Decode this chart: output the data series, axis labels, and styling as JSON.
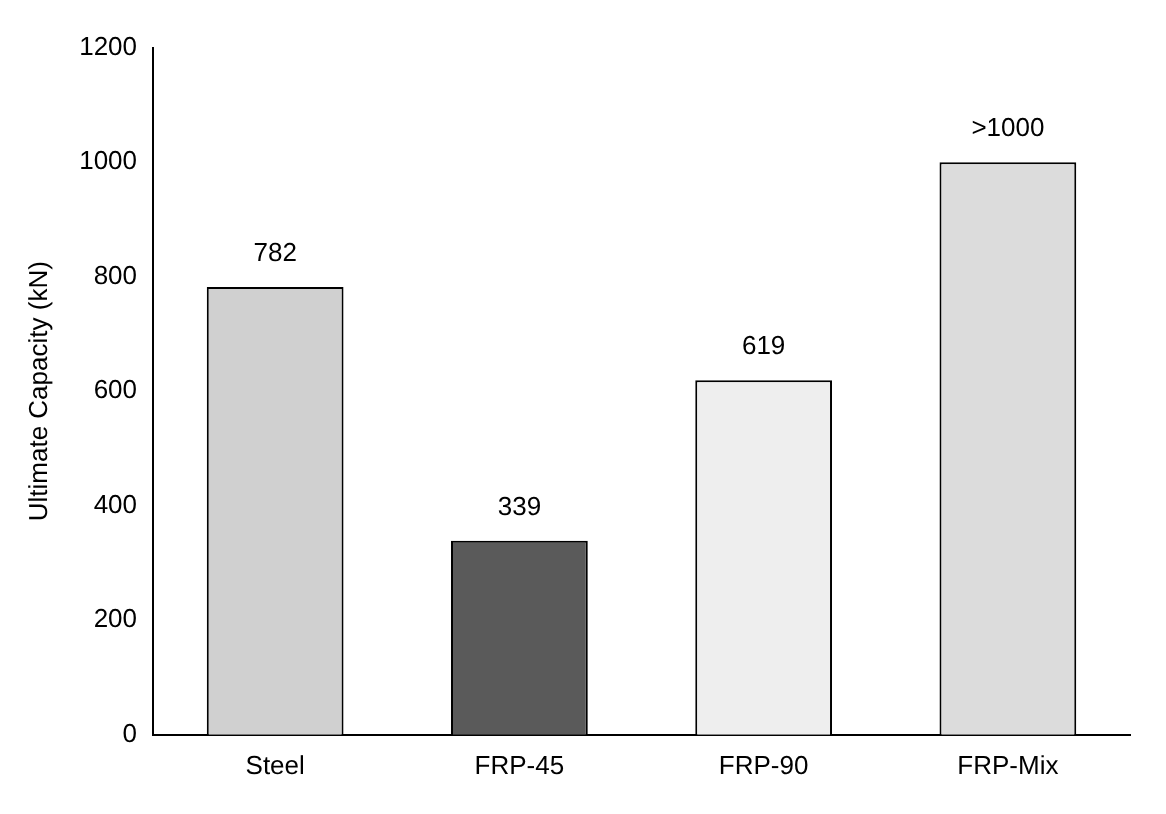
{
  "chart_data": {
    "type": "bar",
    "ylabel": "Ultimate Capacity (kN)",
    "categories": [
      "Steel",
      "FRP-45",
      "FRP-90",
      "FRP-Mix"
    ],
    "values": [
      782,
      339,
      619,
      1000
    ],
    "colors": [
      "#d0d0d0",
      "#5a5a5a",
      "#eeeeee",
      "#dcdcdc"
    ],
    "value_labels": [
      "782",
      "339",
      "619",
      ">1000"
    ],
    "ylim": [
      0,
      1200
    ],
    "yticks": [
      0,
      200,
      400,
      600,
      800,
      1000,
      1200
    ],
    "grid": false,
    "legend": false
  }
}
